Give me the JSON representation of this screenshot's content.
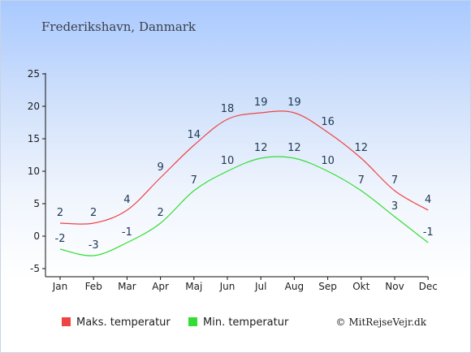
{
  "chart_data": {
    "type": "line",
    "title": "Frederikshavn, Danmark",
    "categories": [
      "Jan",
      "Feb",
      "Mar",
      "Apr",
      "Maj",
      "Jun",
      "Jul",
      "Aug",
      "Sep",
      "Okt",
      "Nov",
      "Dec"
    ],
    "series": [
      {
        "name": "Maks. temperatur",
        "color": "#ee4444",
        "values": [
          2,
          2,
          4,
          9,
          14,
          18,
          19,
          19,
          16,
          12,
          7,
          4
        ]
      },
      {
        "name": "Min. temperatur",
        "color": "#33dd33",
        "values": [
          -2,
          -3,
          -1,
          2,
          7,
          10,
          12,
          12,
          10,
          7,
          3,
          -1
        ]
      }
    ],
    "ylim": [
      -5,
      25
    ],
    "yticks": [
      -5,
      0,
      5,
      10,
      15,
      20,
      25
    ],
    "grid": false,
    "legend": "bottom"
  },
  "credit": "© MitRejseVejr.dk"
}
